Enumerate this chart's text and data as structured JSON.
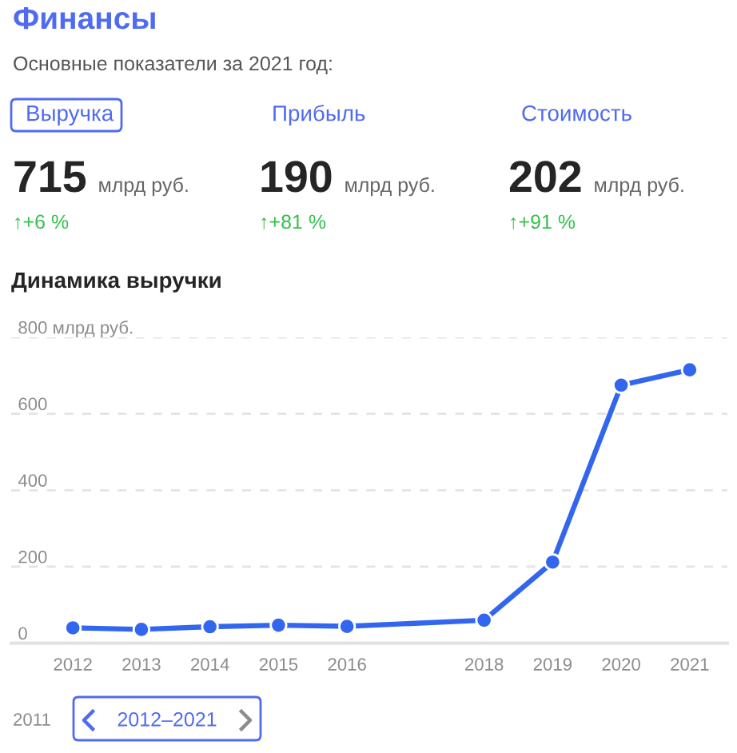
{
  "chart_data": [
    {
      "type": "other",
      "title": "Финансы",
      "subtitle": "Основные показатели за 2021 год:",
      "annotations": [
        "Выручка",
        "Прибыль",
        "Стоимость",
        "715",
        "млрд руб.",
        "↑+6 %",
        "190",
        "млрд руб.",
        "↑+81 %",
        "202",
        "млрд руб.",
        "↑+91 %"
      ]
    },
    {
      "type": "line",
      "title": "Динамика выручки",
      "x": [
        2012,
        2013,
        2014,
        2015,
        2016,
        2018,
        2019,
        2020,
        2021
      ],
      "series": [
        {
          "color": "#3366ee",
          "values": [
            40,
            36,
            43,
            47,
            44,
            60,
            212,
            675,
            715
          ]
        }
      ],
      "xlim": [
        2011.1,
        2021.55
      ],
      "xticks": [
        2012,
        2013,
        2014,
        2015,
        2016,
        2018,
        2019,
        2020,
        2021
      ],
      "ylim": [
        0,
        800
      ],
      "yticks": [
        0,
        200,
        400,
        600,
        {
          "value": 800,
          "label": "800 млрд руб."
        }
      ],
      "grid": "y",
      "marker": "circle",
      "annotations": [
        "2011",
        "2012–2021"
      ]
    }
  ]
}
